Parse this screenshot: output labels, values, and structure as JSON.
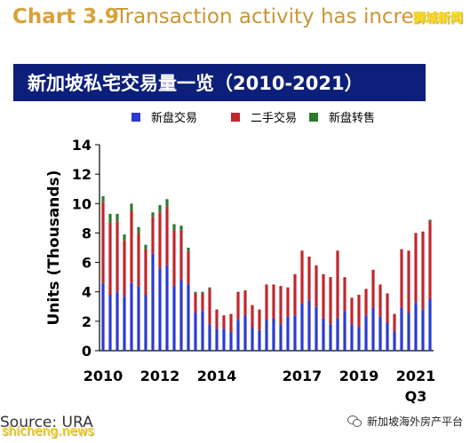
{
  "header": {
    "chart_number": "Chart 3.9",
    "text": "Transaction activity has increa",
    "watermark": "狮城新闻"
  },
  "chart_data": {
    "type": "bar",
    "title": "新加坡私宅交易量一览（2010-2021）",
    "ylabel": "Units (Thousands)",
    "xlabel": "",
    "ylim": [
      0,
      14
    ],
    "yticks": [
      0,
      2,
      4,
      6,
      8,
      10,
      12,
      14
    ],
    "x_tick_labels": [
      "2010",
      "2012",
      "2014",
      "2017",
      "2019",
      "2021"
    ],
    "x_sublabel": "Q3",
    "legend_position": "top",
    "stacked": true,
    "colors": {
      "new_sale": "#2b3bd1",
      "resale": "#c0272d",
      "sub_sale": "#2f7a2f"
    },
    "categories": [
      "2010Q1",
      "2010Q2",
      "2010Q3",
      "2010Q4",
      "2011Q1",
      "2011Q2",
      "2011Q3",
      "2011Q4",
      "2012Q1",
      "2012Q2",
      "2012Q3",
      "2012Q4",
      "2013Q1",
      "2013Q2",
      "2013Q3",
      "2013Q4",
      "2014Q1",
      "2014Q2",
      "2014Q3",
      "2014Q4",
      "2015Q1",
      "2015Q2",
      "2015Q3",
      "2015Q4",
      "2016Q1",
      "2016Q2",
      "2016Q3",
      "2016Q4",
      "2017Q1",
      "2017Q2",
      "2017Q3",
      "2017Q4",
      "2018Q1",
      "2018Q2",
      "2018Q3",
      "2018Q4",
      "2019Q1",
      "2019Q2",
      "2019Q3",
      "2019Q4",
      "2020Q1",
      "2020Q2",
      "2020Q3",
      "2020Q4",
      "2021Q1",
      "2021Q2",
      "2021Q3"
    ],
    "series": [
      {
        "name": "新盘交易",
        "values": [
          4.6,
          3.8,
          4.0,
          3.7,
          4.6,
          4.4,
          3.8,
          6.6,
          5.6,
          5.8,
          4.4,
          4.8,
          4.5,
          2.6,
          2.7,
          1.8,
          1.5,
          1.5,
          1.3,
          2.1,
          2.4,
          1.6,
          1.4,
          2.1,
          2.2,
          1.8,
          2.3,
          2.4,
          3.2,
          3.4,
          3.0,
          2.2,
          1.8,
          2.2,
          2.7,
          1.8,
          1.6,
          2.4,
          2.9,
          2.3,
          1.9,
          1.3,
          2.9,
          2.6,
          3.3,
          2.8,
          3.5
        ]
      },
      {
        "name": "二手交易",
        "values": [
          5.5,
          4.9,
          4.8,
          3.8,
          4.9,
          3.6,
          3.1,
          2.5,
          3.8,
          4.0,
          3.8,
          3.4,
          2.3,
          1.3,
          1.2,
          2.4,
          1.3,
          0.9,
          1.2,
          1.9,
          1.7,
          1.5,
          1.4,
          2.4,
          2.3,
          2.6,
          2.0,
          2.8,
          3.6,
          3.0,
          2.8,
          3.0,
          3.2,
          4.6,
          2.3,
          1.8,
          2.2,
          1.8,
          2.6,
          2.2,
          2.0,
          1.2,
          4.0,
          4.2,
          4.7,
          5.3,
          5.3
        ]
      },
      {
        "name": "新盘转售",
        "values": [
          0.4,
          0.6,
          0.5,
          0.4,
          0.5,
          0.4,
          0.3,
          0.3,
          0.5,
          0.5,
          0.4,
          0.3,
          0.2,
          0.1,
          0.1,
          0.1,
          0.0,
          0.0,
          0.0,
          0.0,
          0.0,
          0.0,
          0.0,
          0.0,
          0.0,
          0.0,
          0.0,
          0.0,
          0.0,
          0.0,
          0.0,
          0.0,
          0.0,
          0.0,
          0.0,
          0.0,
          0.0,
          0.0,
          0.0,
          0.0,
          0.0,
          0.0,
          0.0,
          0.0,
          0.0,
          0.0,
          0.1
        ]
      }
    ]
  },
  "footer": {
    "source": "Source: URA",
    "watermark_left": "shicheng.news",
    "watermark_right": "新加坡海外房产平台"
  }
}
